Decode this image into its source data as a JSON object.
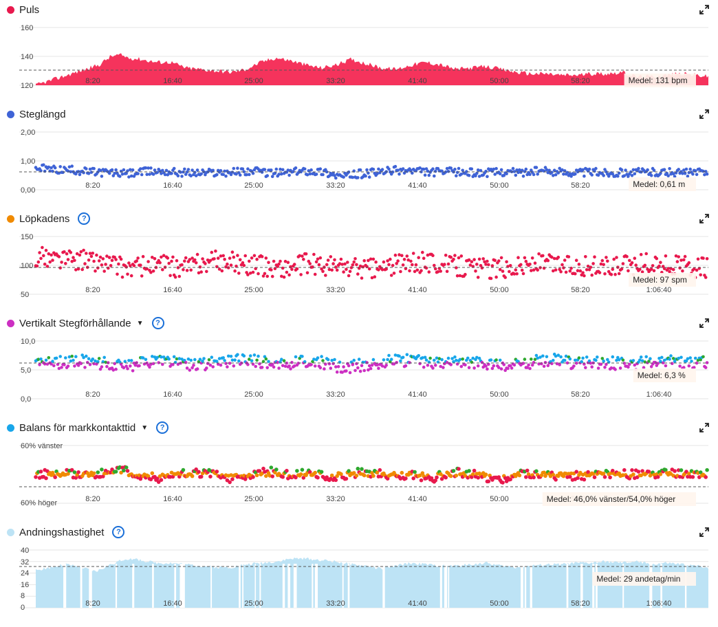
{
  "x_axis_ticks": [
    "8:20",
    "16:40",
    "25:00",
    "33:20",
    "41:40",
    "50:00",
    "58:20",
    "1:06:40"
  ],
  "x_range_seconds": [
    0,
    4480
  ],
  "panels": [
    {
      "key": "pulse",
      "title": "Puls",
      "dot_color": "#e8194d",
      "help": false,
      "caret": false,
      "y_ticks": [
        "160",
        "140",
        "120"
      ],
      "avg_label": "Medel: 131 bpm"
    },
    {
      "key": "stride",
      "title": "Steglängd",
      "dot_color": "#3f63d6",
      "help": false,
      "caret": false,
      "y_ticks": [
        "2,00",
        "1,00",
        "0,00"
      ],
      "avg_label": "Medel: 0,61 m"
    },
    {
      "key": "cadence",
      "title": "Löpkadens",
      "dot_color": "#f08a00",
      "help": true,
      "caret": false,
      "y_ticks": [
        "150",
        "100",
        "50"
      ],
      "avg_label": "Medel: 97 spm"
    },
    {
      "key": "vratio",
      "title": "Vertikalt Stegförhållande",
      "dot_color": "#cc2fc2",
      "help": true,
      "caret": true,
      "y_ticks": [
        "10,0",
        "5,0",
        "0,0"
      ],
      "avg_label": "Medel: 6,3 %"
    },
    {
      "key": "gct",
      "title": "Balans för markkontakttid",
      "dot_color": "#18a6ea",
      "help": true,
      "caret": true,
      "y_ticks": [
        "60% vänster",
        "60% höger"
      ],
      "avg_label": "Medel: 46,0% vänster/54,0% höger"
    },
    {
      "key": "resp",
      "title": "Andningshastighet",
      "dot_color": "#bde3f5",
      "help": true,
      "caret": false,
      "y_ticks": [
        "40",
        "32",
        "24",
        "16",
        "8",
        "0"
      ],
      "avg_label": "Medel: 29 andetag/min"
    }
  ],
  "chart_data": [
    {
      "type": "area",
      "title": "Puls",
      "ylim": [
        120,
        160
      ],
      "average": 131,
      "unit": "bpm",
      "color": "#f5335c",
      "x": [
        0,
        60,
        180,
        300,
        420,
        500,
        560,
        620,
        700,
        800,
        900,
        1000,
        1100,
        1200,
        1300,
        1400,
        1500,
        1600,
        1700,
        1800,
        1900,
        2000,
        2100,
        2200,
        2300,
        2400,
        2500,
        2600,
        2700,
        2800,
        2900,
        3000,
        3100,
        3200,
        3300,
        3400,
        3500,
        3600,
        3700,
        3800,
        3900,
        4000,
        4100,
        4200,
        4300,
        4400,
        4480
      ],
      "y": [
        120,
        122,
        126,
        130,
        134,
        140,
        141,
        139,
        138,
        136,
        136,
        132,
        131,
        130,
        129,
        131,
        136,
        139,
        137,
        134,
        132,
        134,
        138,
        135,
        132,
        131,
        134,
        136,
        134,
        131,
        132,
        133,
        131,
        129,
        128,
        128,
        127,
        127,
        128,
        128,
        129,
        126,
        126,
        127,
        128,
        127,
        126
      ]
    },
    {
      "type": "scatter",
      "title": "Steglängd",
      "ylim": [
        0,
        2
      ],
      "average": 0.61,
      "unit": "m",
      "color": "#3f63d6",
      "x": [
        0,
        120,
        240,
        360,
        480,
        600,
        720,
        840,
        960,
        1080,
        1200,
        1320,
        1440,
        1560,
        1680,
        1800,
        1920,
        2040,
        2160,
        2280,
        2400,
        2520,
        2640,
        2760,
        2880,
        3000,
        3120,
        3240,
        3360,
        3480,
        3600,
        3720,
        3840,
        3960,
        4080,
        4200,
        4320,
        4440
      ],
      "y": [
        0.75,
        0.7,
        0.68,
        0.62,
        0.6,
        0.55,
        0.62,
        0.65,
        0.6,
        0.58,
        0.6,
        0.62,
        0.65,
        0.58,
        0.6,
        0.66,
        0.62,
        0.45,
        0.55,
        0.6,
        0.68,
        0.65,
        0.6,
        0.62,
        0.6,
        0.58,
        0.63,
        0.6,
        0.65,
        0.62,
        0.6,
        0.62,
        0.58,
        0.6,
        0.62,
        0.6,
        0.58,
        0.6
      ]
    },
    {
      "type": "scatter",
      "title": "Löpkadens",
      "ylim": [
        50,
        150
      ],
      "average": 97,
      "unit": "spm",
      "color": "#e8194d",
      "x": [
        0,
        120,
        240,
        360,
        480,
        600,
        720,
        840,
        960,
        1080,
        1200,
        1320,
        1440,
        1560,
        1680,
        1800,
        1920,
        2040,
        2160,
        2280,
        2400,
        2520,
        2640,
        2760,
        2880,
        3000,
        3120,
        3240,
        3360,
        3480,
        3600,
        3720,
        3840,
        3960,
        4080,
        4200,
        4320,
        4440
      ],
      "y": [
        115,
        112,
        110,
        108,
        104,
        96,
        98,
        100,
        95,
        102,
        108,
        106,
        100,
        98,
        95,
        104,
        100,
        98,
        96,
        94,
        102,
        104,
        106,
        100,
        98,
        95,
        96,
        100,
        104,
        102,
        100,
        98,
        95,
        100,
        104,
        100,
        98,
        95
      ]
    },
    {
      "type": "scatter",
      "title": "Vertikalt Stegförhållande",
      "ylim": [
        0,
        10
      ],
      "average": 6.3,
      "unit": "%",
      "color": "#cc2fc2",
      "x": [
        0,
        120,
        240,
        360,
        480,
        600,
        720,
        840,
        960,
        1080,
        1200,
        1320,
        1440,
        1560,
        1680,
        1800,
        1920,
        2040,
        2160,
        2280,
        2400,
        2520,
        2640,
        2760,
        2880,
        3000,
        3120,
        3240,
        3360,
        3480,
        3600,
        3720,
        3840,
        3960,
        4080,
        4200,
        4320,
        4440
      ],
      "y": [
        6,
        6.2,
        6.4,
        6.5,
        6.0,
        5.6,
        6.3,
        6.8,
        6.2,
        5.8,
        6.5,
        6.6,
        6.8,
        6.1,
        6.0,
        6.4,
        6.2,
        5.4,
        5.8,
        6.2,
        6.8,
        6.5,
        6.0,
        6.2,
        6.4,
        6.2,
        5.8,
        6.1,
        6.5,
        6.8,
        6.0,
        6.4,
        6.2,
        6.0,
        6.5,
        6.6,
        6.2,
        6.3
      ]
    },
    {
      "type": "scatter",
      "title": "Balans för markkontakttid",
      "ylim": [
        -60,
        60
      ],
      "average": "46,0% vänster/54,0% höger",
      "color": "#e8194d",
      "x": [
        0,
        120,
        240,
        360,
        480,
        600,
        720,
        840,
        960,
        1080,
        1200,
        1320,
        1440,
        1560,
        1680,
        1800,
        1920,
        2040,
        2160,
        2280,
        2400,
        2520,
        2640,
        2760,
        2880,
        3000,
        3120,
        3240,
        3360,
        3480,
        3600,
        3720,
        3840,
        3960,
        4080,
        4200,
        4320,
        4440
      ],
      "y": [
        0,
        1,
        1,
        0,
        2,
        8,
        -3,
        -8,
        4,
        2,
        1,
        -10,
        1,
        6,
        -2,
        2,
        -4,
        -6,
        5,
        2,
        -5,
        -2,
        -8,
        5,
        2,
        -6,
        -10,
        3,
        0,
        -5,
        -2,
        -3,
        0,
        0,
        -1,
        2,
        1,
        0
      ]
    },
    {
      "type": "area",
      "title": "Andningshastighet",
      "ylim": [
        0,
        40
      ],
      "average": 29,
      "unit": "andetag/min",
      "color": "#bde3f5",
      "x": [
        0,
        100,
        200,
        300,
        400,
        500,
        600,
        700,
        800,
        900,
        1000,
        1100,
        1200,
        1300,
        1400,
        1500,
        1600,
        1700,
        1800,
        1900,
        2000,
        2100,
        2200,
        2300,
        2400,
        2500,
        2600,
        2700,
        2800,
        2900,
        3000,
        3100,
        3200,
        3300,
        3400,
        3500,
        3600,
        3700,
        3800,
        3900,
        4000,
        4100,
        4200,
        4300,
        4400,
        4480
      ],
      "y": [
        26,
        28,
        30,
        28,
        25,
        30,
        34,
        33,
        31,
        31,
        30,
        29,
        28,
        28,
        30,
        31,
        32,
        34,
        34,
        33,
        32,
        30,
        29,
        27,
        29,
        31,
        30,
        29,
        29,
        30,
        31,
        29,
        28,
        29,
        30,
        30,
        31,
        31,
        32,
        31,
        32,
        30,
        31,
        30,
        29,
        28
      ]
    }
  ]
}
